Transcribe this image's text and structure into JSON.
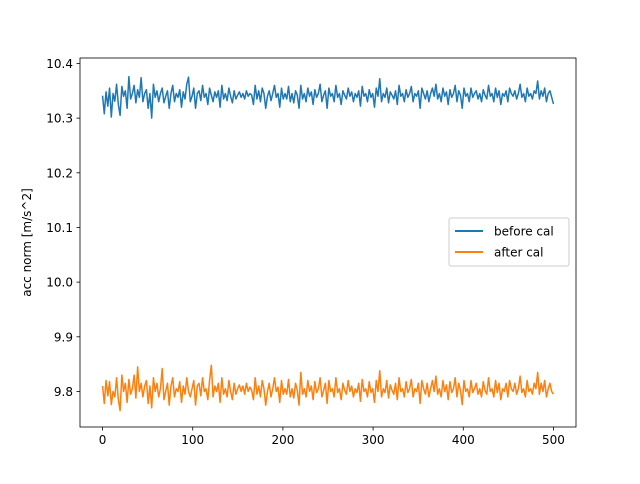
{
  "chart_data": {
    "type": "line",
    "title": "",
    "xlabel": "",
    "ylabel": "acc norm [m/s^2]",
    "xlim": [
      -25,
      525
    ],
    "ylim": [
      9.735,
      10.41
    ],
    "xticks": [
      0,
      100,
      200,
      300,
      400,
      500
    ],
    "xtick_labels": [
      "0",
      "100",
      "200",
      "300",
      "400",
      "500"
    ],
    "yticks": [
      9.8,
      9.9,
      10.0,
      10.1,
      10.2,
      10.3,
      10.4
    ],
    "ytick_labels": [
      "9.8",
      "9.9",
      "10.0",
      "10.1",
      "10.2",
      "10.3",
      "10.4"
    ],
    "grid": false,
    "legend_position": "center-right",
    "x": {
      "start": 0,
      "end": 500,
      "step": 2
    },
    "series": [
      {
        "name": "before cal",
        "color": "#1f77b4",
        "values": [
          10.341,
          10.308,
          10.348,
          10.322,
          10.355,
          10.302,
          10.345,
          10.331,
          10.362,
          10.325,
          10.305,
          10.358,
          10.34,
          10.35,
          10.318,
          10.376,
          10.335,
          10.345,
          10.36,
          10.328,
          10.352,
          10.338,
          10.374,
          10.33,
          10.345,
          10.352,
          10.318,
          10.345,
          10.3,
          10.362,
          10.338,
          10.35,
          10.33,
          10.345,
          10.355,
          10.328,
          10.34,
          10.35,
          10.318,
          10.345,
          10.36,
          10.33,
          10.345,
          10.338,
          10.352,
          10.32,
          10.348,
          10.335,
          10.362,
          10.375,
          10.33,
          10.34,
          10.355,
          10.318,
          10.345,
          10.35,
          10.332,
          10.36,
          10.338,
          10.345,
          10.325,
          10.355,
          10.342,
          10.33,
          10.348,
          10.338,
          10.35,
          10.32,
          10.36,
          10.335,
          10.345,
          10.332,
          10.355,
          10.34,
          10.328,
          10.35,
          10.335,
          10.342,
          10.348,
          10.338,
          10.345,
          10.335,
          10.35,
          10.34,
          10.345,
          10.342,
          10.325,
          10.36,
          10.335,
          10.35,
          10.33,
          10.355,
          10.345,
          10.318,
          10.34,
          10.35,
          10.332,
          10.345,
          10.36,
          10.338,
          10.345,
          10.32,
          10.355,
          10.335,
          10.345,
          10.335,
          10.358,
          10.33,
          10.345,
          10.328,
          10.35,
          10.342,
          10.318,
          10.36,
          10.335,
          10.345,
          10.33,
          10.355,
          10.34,
          10.348,
          10.325,
          10.352,
          10.338,
          10.345,
          10.362,
          10.33,
          10.342,
          10.35,
          10.318,
          10.355,
          10.34,
          10.345,
          10.33,
          10.36,
          10.338,
          10.345,
          10.325,
          10.35,
          10.342,
          10.335,
          10.355,
          10.34,
          10.348,
          10.33,
          10.345,
          10.338,
          10.35,
          10.322,
          10.358,
          10.34,
          10.345,
          10.33,
          10.352,
          10.338,
          10.345,
          10.32,
          10.355,
          10.34,
          10.372,
          10.33,
          10.345,
          10.338,
          10.355,
          10.328,
          10.348,
          10.342,
          10.335,
          10.35,
          10.325,
          10.36,
          10.34,
          10.345,
          10.33,
          10.352,
          10.338,
          10.345,
          10.358,
          10.33,
          10.345,
          10.34,
          10.35,
          10.318,
          10.355,
          10.345,
          10.335,
          10.35,
          10.33,
          10.345,
          10.355,
          10.34,
          10.362,
          10.335,
          10.345,
          10.33,
          10.355,
          10.34,
          10.348,
          10.325,
          10.352,
          10.338,
          10.345,
          10.36,
          10.33,
          10.35,
          10.342,
          10.318,
          10.355,
          10.34,
          10.345,
          10.33,
          10.355,
          10.338,
          10.345,
          10.35,
          10.335,
          10.345,
          10.33,
          10.352,
          10.342,
          10.335,
          10.36,
          10.34,
          10.345,
          10.33,
          10.355,
          10.338,
          10.35,
          10.325,
          10.345,
          10.34,
          10.35,
          10.33,
          10.355,
          10.345,
          10.34,
          10.35,
          10.335,
          10.345,
          10.362,
          10.338,
          10.345,
          10.33,
          10.355,
          10.34,
          10.345,
          10.335,
          10.35,
          10.345,
          10.368,
          10.335,
          10.35,
          10.34,
          10.355,
          10.33,
          10.345,
          10.35,
          10.338,
          10.326
        ]
      },
      {
        "name": "after cal",
        "color": "#ff7f0e",
        "values": [
          9.81,
          9.778,
          9.82,
          9.792,
          9.818,
          9.776,
          9.8,
          9.79,
          9.825,
          9.785,
          9.765,
          9.83,
          9.8,
          9.815,
          9.78,
          9.822,
          9.795,
          9.805,
          9.83,
          9.788,
          9.845,
          9.8,
          9.815,
          9.79,
          9.81,
          9.82,
          9.778,
          9.81,
          9.77,
          9.825,
          9.8,
          9.815,
          9.79,
          9.805,
          9.842,
          9.785,
          9.8,
          9.815,
          9.775,
          9.81,
          9.825,
          9.79,
          9.805,
          9.8,
          9.818,
          9.78,
          9.81,
          9.795,
          9.825,
          9.8,
          9.79,
          9.805,
          9.82,
          9.775,
          9.81,
          9.815,
          9.792,
          9.825,
          9.8,
          9.805,
          9.785,
          9.82,
          9.848,
          9.79,
          9.81,
          9.8,
          9.815,
          9.78,
          9.825,
          9.795,
          9.805,
          9.79,
          9.82,
          9.8,
          9.785,
          9.815,
          9.795,
          9.805,
          9.812,
          9.8,
          9.81,
          9.795,
          9.815,
          9.8,
          9.808,
          9.802,
          9.785,
          9.825,
          9.795,
          9.81,
          9.79,
          9.82,
          9.805,
          9.775,
          9.8,
          9.815,
          9.79,
          9.805,
          9.825,
          9.8,
          9.808,
          9.78,
          9.82,
          9.795,
          9.805,
          9.795,
          9.822,
          9.79,
          9.805,
          9.788,
          9.815,
          9.802,
          9.775,
          9.835,
          9.795,
          9.805,
          9.79,
          9.82,
          9.8,
          9.81,
          9.785,
          9.818,
          9.798,
          9.805,
          9.825,
          9.79,
          9.802,
          9.815,
          9.778,
          9.82,
          9.8,
          9.805,
          9.79,
          9.825,
          9.798,
          9.805,
          9.785,
          9.815,
          9.802,
          9.795,
          9.82,
          9.8,
          9.81,
          9.79,
          9.805,
          9.798,
          9.815,
          9.782,
          9.822,
          9.8,
          9.805,
          9.79,
          9.818,
          9.798,
          9.805,
          9.78,
          9.82,
          9.8,
          9.838,
          9.79,
          9.805,
          9.798,
          9.82,
          9.788,
          9.812,
          9.802,
          9.795,
          9.815,
          9.785,
          9.825,
          9.8,
          9.805,
          9.79,
          9.818,
          9.798,
          9.805,
          9.822,
          9.79,
          9.805,
          9.8,
          9.815,
          9.778,
          9.82,
          9.805,
          9.795,
          9.815,
          9.79,
          9.805,
          9.82,
          9.8,
          9.828,
          9.795,
          9.805,
          9.79,
          9.82,
          9.8,
          9.812,
          9.785,
          9.818,
          9.798,
          9.805,
          9.825,
          9.79,
          9.815,
          9.802,
          9.776,
          9.82,
          9.8,
          9.805,
          9.79,
          9.82,
          9.798,
          9.805,
          9.815,
          9.795,
          9.805,
          9.79,
          9.818,
          9.802,
          9.795,
          9.825,
          9.8,
          9.805,
          9.79,
          9.82,
          9.798,
          9.815,
          9.785,
          9.805,
          9.8,
          9.815,
          9.79,
          9.82,
          9.805,
          9.8,
          9.815,
          9.795,
          9.805,
          9.828,
          9.798,
          9.805,
          9.79,
          9.82,
          9.8,
          9.805,
          9.795,
          9.815,
          9.805,
          9.835,
          9.795,
          9.815,
          9.8,
          9.82,
          9.79,
          9.805,
          9.815,
          9.8,
          9.795
        ]
      }
    ]
  }
}
